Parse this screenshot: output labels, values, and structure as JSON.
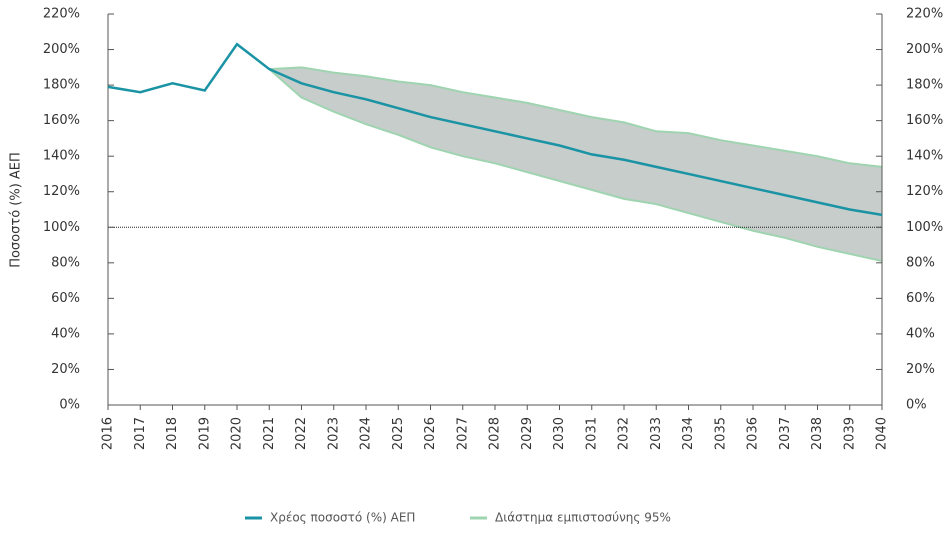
{
  "chart_data": {
    "type": "line",
    "y_label": "Ποσοστό (%) ΑΕΠ",
    "categories": [
      "2016",
      "2017",
      "2018",
      "2019",
      "2020",
      "2021",
      "2022",
      "2023",
      "2024",
      "2025",
      "2026",
      "2027",
      "2028",
      "2029",
      "2030",
      "2031",
      "2032",
      "2033",
      "2034",
      "2035",
      "2036",
      "2037",
      "2038",
      "2039",
      "2040"
    ],
    "series": [
      {
        "name": "Χρέος ποσοστό (%) ΑΕΠ",
        "color": "#1a93a4",
        "values": [
          179,
          176,
          181,
          177,
          203,
          189,
          181,
          176,
          172,
          167,
          162,
          158,
          154,
          150,
          146,
          141,
          138,
          134,
          130,
          126,
          122,
          118,
          114,
          110,
          107
        ]
      },
      {
        "name": "Διάστημα εμπιστοσύνης 95%",
        "color": "#9fd4b0",
        "fill": "#c6cdcb",
        "upper": [
          null,
          null,
          null,
          null,
          null,
          189,
          190,
          187,
          185,
          182,
          180,
          176,
          173,
          170,
          166,
          162,
          159,
          154,
          153,
          149,
          146,
          143,
          140,
          136,
          134
        ],
        "lower": [
          null,
          null,
          null,
          null,
          null,
          189,
          173,
          165,
          158,
          152,
          145,
          140,
          136,
          131,
          126,
          121,
          116,
          113,
          108,
          103,
          98,
          94,
          89,
          85,
          81
        ]
      }
    ],
    "hline": 100,
    "ylim": [
      0,
      220
    ],
    "yticks": [
      {
        "value": 0,
        "label": "0%"
      },
      {
        "value": 20,
        "label": "20%"
      },
      {
        "value": 40,
        "label": "40%"
      },
      {
        "value": 60,
        "label": "60%"
      },
      {
        "value": 80,
        "label": "80%"
      },
      {
        "value": 100,
        "label": "100%"
      },
      {
        "value": 120,
        "label": "120%"
      },
      {
        "value": 140,
        "label": "140%"
      },
      {
        "value": 160,
        "label": "160%"
      },
      {
        "value": 180,
        "label": "180%"
      },
      {
        "value": 200,
        "label": "200%"
      },
      {
        "value": 220,
        "label": "220%"
      }
    ],
    "y2lim": [
      0,
      220
    ],
    "y2ticks": [
      {
        "value": 0,
        "label": "0%"
      },
      {
        "value": 20,
        "label": "20%"
      },
      {
        "value": 40,
        "label": "40%"
      },
      {
        "value": 60,
        "label": "60%"
      },
      {
        "value": 80,
        "label": "80%"
      },
      {
        "value": 100,
        "label": "100%"
      },
      {
        "value": 120,
        "label": "120%"
      },
      {
        "value": 140,
        "label": "140%"
      },
      {
        "value": 160,
        "label": "160%"
      },
      {
        "value": 180,
        "label": "180%"
      },
      {
        "value": 200,
        "label": "200%"
      },
      {
        "value": 220,
        "label": "220%"
      }
    ],
    "legend": "bottom"
  }
}
